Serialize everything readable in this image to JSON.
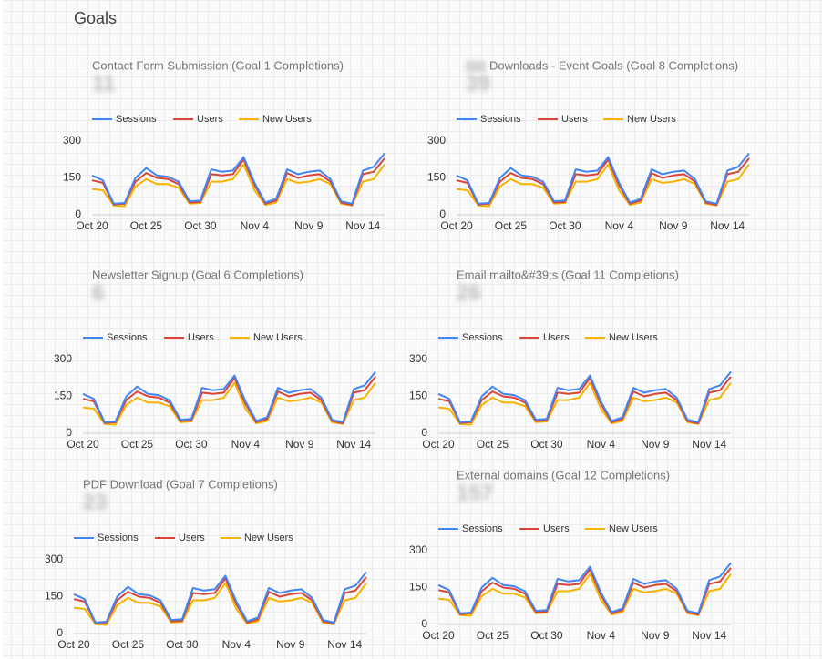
{
  "header": {
    "title": "Goals"
  },
  "chart_data": [
    {
      "type": "line",
      "title": "Contact Form Submission (Goal 1 Completions)",
      "metric": "11",
      "categories": [
        "Oct 20",
        null,
        null,
        null,
        null,
        "Oct 25",
        null,
        null,
        null,
        null,
        "Oct 30",
        null,
        null,
        null,
        null,
        "Nov 4",
        null,
        null,
        null,
        null,
        "Nov 9",
        null,
        null,
        null,
        null,
        "Nov 14",
        null,
        null
      ],
      "series": [
        {
          "name": "Sessions",
          "color": "#4285f4",
          "values": [
            160,
            140,
            45,
            48,
            150,
            190,
            160,
            155,
            135,
            55,
            58,
            185,
            175,
            180,
            235,
            130,
            50,
            65,
            185,
            165,
            175,
            180,
            145,
            55,
            45,
            180,
            195,
            250
          ]
        },
        {
          "name": "Users",
          "color": "#db4437",
          "values": [
            140,
            130,
            42,
            45,
            135,
            170,
            150,
            145,
            125,
            50,
            52,
            165,
            160,
            165,
            225,
            120,
            45,
            58,
            170,
            150,
            160,
            165,
            135,
            50,
            40,
            165,
            175,
            230
          ]
        },
        {
          "name": "New Users",
          "color": "#f4b400",
          "values": [
            105,
            100,
            38,
            35,
            115,
            145,
            125,
            125,
            110,
            45,
            48,
            135,
            135,
            145,
            205,
            100,
            40,
            50,
            145,
            130,
            135,
            145,
            125,
            45,
            38,
            135,
            145,
            205
          ]
        }
      ],
      "ylim": [
        0,
        300
      ],
      "yticks": [
        0,
        150,
        300
      ]
    },
    {
      "type": "line",
      "title": "Downloads - Event Goals (Goal 8 Completions)",
      "metric": "39",
      "categories": [
        "Oct 20",
        null,
        null,
        null,
        null,
        "Oct 25",
        null,
        null,
        null,
        null,
        "Oct 30",
        null,
        null,
        null,
        null,
        "Nov 4",
        null,
        null,
        null,
        null,
        "Nov 9",
        null,
        null,
        null,
        null,
        "Nov 14",
        null,
        null
      ],
      "series": [
        {
          "name": "Sessions",
          "color": "#4285f4",
          "values": [
            160,
            140,
            45,
            48,
            150,
            190,
            160,
            155,
            135,
            55,
            58,
            185,
            175,
            180,
            235,
            130,
            50,
            65,
            185,
            165,
            175,
            180,
            145,
            55,
            45,
            180,
            195,
            250
          ]
        },
        {
          "name": "Users",
          "color": "#db4437",
          "values": [
            140,
            130,
            42,
            45,
            135,
            170,
            150,
            145,
            125,
            50,
            52,
            165,
            160,
            165,
            225,
            120,
            45,
            58,
            170,
            150,
            160,
            165,
            135,
            50,
            40,
            165,
            175,
            230
          ]
        },
        {
          "name": "New Users",
          "color": "#f4b400",
          "values": [
            105,
            100,
            38,
            35,
            115,
            145,
            125,
            125,
            110,
            45,
            48,
            135,
            135,
            145,
            205,
            100,
            40,
            50,
            145,
            130,
            135,
            145,
            125,
            45,
            38,
            135,
            145,
            205
          ]
        }
      ],
      "ylim": [
        0,
        300
      ],
      "yticks": [
        0,
        150,
        300
      ]
    },
    {
      "type": "line",
      "title": "Newsletter Signup (Goal 6 Completions)",
      "metric": "6",
      "categories": [
        "Oct 20",
        null,
        null,
        null,
        null,
        "Oct 25",
        null,
        null,
        null,
        null,
        "Oct 30",
        null,
        null,
        null,
        null,
        "Nov 4",
        null,
        null,
        null,
        null,
        "Nov 9",
        null,
        null,
        null,
        null,
        "Nov 14",
        null,
        null
      ],
      "series": [
        {
          "name": "Sessions",
          "color": "#4285f4",
          "values": [
            160,
            140,
            45,
            48,
            150,
            190,
            160,
            155,
            135,
            55,
            58,
            185,
            175,
            180,
            235,
            130,
            50,
            65,
            185,
            165,
            175,
            180,
            145,
            55,
            45,
            180,
            195,
            250
          ]
        },
        {
          "name": "Users",
          "color": "#db4437",
          "values": [
            140,
            130,
            42,
            45,
            135,
            170,
            150,
            145,
            125,
            50,
            52,
            165,
            160,
            165,
            225,
            120,
            45,
            58,
            170,
            150,
            160,
            165,
            135,
            50,
            40,
            165,
            175,
            230
          ]
        },
        {
          "name": "New Users",
          "color": "#f4b400",
          "values": [
            105,
            100,
            38,
            35,
            115,
            145,
            125,
            125,
            110,
            45,
            48,
            135,
            135,
            145,
            205,
            100,
            40,
            50,
            145,
            130,
            135,
            145,
            125,
            45,
            38,
            135,
            145,
            205
          ]
        }
      ],
      "ylim": [
        0,
        300
      ],
      "yticks": [
        0,
        150,
        300
      ]
    },
    {
      "type": "line",
      "title": "Email mailto&#39;s (Goal 11 Completions)",
      "metric": "26",
      "categories": [
        "Oct 20",
        null,
        null,
        null,
        null,
        "Oct 25",
        null,
        null,
        null,
        null,
        "Oct 30",
        null,
        null,
        null,
        null,
        "Nov 4",
        null,
        null,
        null,
        null,
        "Nov 9",
        null,
        null,
        null,
        null,
        "Nov 14",
        null,
        null
      ],
      "series": [
        {
          "name": "Sessions",
          "color": "#4285f4",
          "values": [
            160,
            140,
            45,
            48,
            150,
            190,
            160,
            155,
            135,
            55,
            58,
            185,
            175,
            180,
            235,
            130,
            50,
            65,
            185,
            165,
            175,
            180,
            145,
            55,
            45,
            180,
            195,
            250
          ]
        },
        {
          "name": "Users",
          "color": "#db4437",
          "values": [
            140,
            130,
            42,
            45,
            135,
            170,
            150,
            145,
            125,
            50,
            52,
            165,
            160,
            165,
            225,
            120,
            45,
            58,
            170,
            150,
            160,
            165,
            135,
            50,
            40,
            165,
            175,
            230
          ]
        },
        {
          "name": "New Users",
          "color": "#f4b400",
          "values": [
            105,
            100,
            38,
            35,
            115,
            145,
            125,
            125,
            110,
            45,
            48,
            135,
            135,
            145,
            205,
            100,
            40,
            50,
            145,
            130,
            135,
            145,
            125,
            45,
            38,
            135,
            145,
            205
          ]
        }
      ],
      "ylim": [
        0,
        300
      ],
      "yticks": [
        0,
        150,
        300
      ]
    },
    {
      "type": "line",
      "title": "PDF Download (Goal 7 Completions)",
      "metric": "23",
      "categories": [
        "Oct 20",
        null,
        null,
        null,
        null,
        "Oct 25",
        null,
        null,
        null,
        null,
        "Oct 30",
        null,
        null,
        null,
        null,
        "Nov 4",
        null,
        null,
        null,
        null,
        "Nov 9",
        null,
        null,
        null,
        null,
        "Nov 14",
        null,
        null
      ],
      "series": [
        {
          "name": "Sessions",
          "color": "#4285f4",
          "values": [
            160,
            140,
            45,
            48,
            150,
            190,
            160,
            155,
            135,
            55,
            58,
            185,
            175,
            180,
            235,
            130,
            50,
            65,
            185,
            165,
            175,
            180,
            145,
            55,
            45,
            180,
            195,
            250
          ]
        },
        {
          "name": "Users",
          "color": "#db4437",
          "values": [
            140,
            130,
            42,
            45,
            135,
            170,
            150,
            145,
            125,
            50,
            52,
            165,
            160,
            165,
            225,
            120,
            45,
            58,
            170,
            150,
            160,
            165,
            135,
            50,
            40,
            165,
            175,
            230
          ]
        },
        {
          "name": "New Users",
          "color": "#f4b400",
          "values": [
            105,
            100,
            38,
            35,
            115,
            145,
            125,
            125,
            110,
            45,
            48,
            135,
            135,
            145,
            205,
            100,
            40,
            50,
            145,
            130,
            135,
            145,
            125,
            45,
            38,
            135,
            145,
            205
          ]
        }
      ],
      "ylim": [
        0,
        300
      ],
      "yticks": [
        0,
        150,
        300
      ]
    },
    {
      "type": "line",
      "title": "External domains (Goal 12 Completions)",
      "metric": "157",
      "categories": [
        "Oct 20",
        null,
        null,
        null,
        null,
        "Oct 25",
        null,
        null,
        null,
        null,
        "Oct 30",
        null,
        null,
        null,
        null,
        "Nov 4",
        null,
        null,
        null,
        null,
        "Nov 9",
        null,
        null,
        null,
        null,
        "Nov 14",
        null,
        null
      ],
      "series": [
        {
          "name": "Sessions",
          "color": "#4285f4",
          "values": [
            160,
            140,
            45,
            48,
            150,
            190,
            160,
            155,
            135,
            55,
            58,
            185,
            175,
            180,
            235,
            130,
            50,
            65,
            185,
            165,
            175,
            180,
            145,
            55,
            45,
            180,
            195,
            250
          ]
        },
        {
          "name": "Users",
          "color": "#db4437",
          "values": [
            140,
            130,
            42,
            45,
            135,
            170,
            150,
            145,
            125,
            50,
            52,
            165,
            160,
            165,
            225,
            120,
            45,
            58,
            170,
            150,
            160,
            165,
            135,
            50,
            40,
            165,
            175,
            230
          ]
        },
        {
          "name": "New Users",
          "color": "#f4b400",
          "values": [
            105,
            100,
            38,
            35,
            115,
            145,
            125,
            125,
            110,
            45,
            48,
            135,
            135,
            145,
            205,
            100,
            40,
            50,
            145,
            130,
            135,
            145,
            125,
            45,
            38,
            135,
            145,
            205
          ]
        }
      ],
      "ylim": [
        0,
        300
      ],
      "yticks": [
        0,
        150,
        300
      ]
    }
  ]
}
